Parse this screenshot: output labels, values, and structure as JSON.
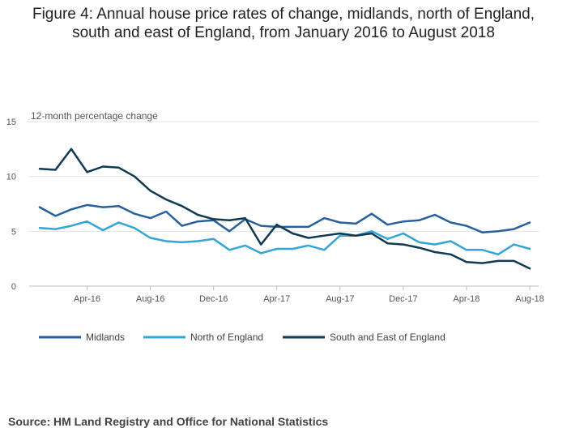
{
  "figure": {
    "title_line1": "Figure 4: Annual house price rates of change, midlands, north of England,",
    "title_line2": "south and east of England, from January 2016 to August 2018",
    "source": "Source: HM Land Registry and Office for National Statistics"
  },
  "chart_data": {
    "type": "line",
    "ylabel": "12-month percentage change",
    "xlabel": "",
    "ylim": [
      0,
      15
    ],
    "yticks": [
      0,
      5,
      10,
      15
    ],
    "grid": true,
    "legend_position": "bottom-left",
    "x": [
      "Jan-16",
      "Feb-16",
      "Mar-16",
      "Apr-16",
      "May-16",
      "Jun-16",
      "Jul-16",
      "Aug-16",
      "Sep-16",
      "Oct-16",
      "Nov-16",
      "Dec-16",
      "Jan-17",
      "Feb-17",
      "Mar-17",
      "Apr-17",
      "May-17",
      "Jun-17",
      "Jul-17",
      "Aug-17",
      "Sep-17",
      "Oct-17",
      "Nov-17",
      "Dec-17",
      "Jan-18",
      "Feb-18",
      "Mar-18",
      "Apr-18",
      "May-18",
      "Jun-18",
      "Jul-18",
      "Aug-18"
    ],
    "xtick_labels": [
      "Apr-16",
      "Aug-16",
      "Dec-16",
      "Apr-17",
      "Aug-17",
      "Dec-17",
      "Apr-18",
      "Aug-18"
    ],
    "series": [
      {
        "name": "Midlands",
        "color": "#27609d",
        "values": [
          7.2,
          6.4,
          7.0,
          7.4,
          7.2,
          7.3,
          6.6,
          6.2,
          6.8,
          5.5,
          5.9,
          6.0,
          5.0,
          6.1,
          5.5,
          5.4,
          5.4,
          5.4,
          6.2,
          5.8,
          5.7,
          6.6,
          5.6,
          5.9,
          6.0,
          6.5,
          5.8,
          5.5,
          4.9,
          5.0,
          5.2,
          5.8
        ]
      },
      {
        "name": "North of England",
        "color": "#35a4d6",
        "values": [
          5.3,
          5.2,
          5.5,
          5.9,
          5.1,
          5.8,
          5.3,
          4.4,
          4.1,
          4.0,
          4.1,
          4.3,
          3.3,
          3.7,
          3.0,
          3.4,
          3.4,
          3.7,
          3.3,
          4.6,
          4.6,
          5.0,
          4.3,
          4.8,
          4.0,
          3.8,
          4.1,
          3.3,
          3.3,
          2.9,
          3.8,
          3.4
        ]
      },
      {
        "name": "South and East of England",
        "color": "#0f3a52",
        "values": [
          10.7,
          10.6,
          12.5,
          10.4,
          10.9,
          10.8,
          10.0,
          8.7,
          7.9,
          7.3,
          6.5,
          6.1,
          6.0,
          6.2,
          3.8,
          5.6,
          4.8,
          4.4,
          4.6,
          4.8,
          4.6,
          4.8,
          3.9,
          3.8,
          3.5,
          3.1,
          2.9,
          2.2,
          2.1,
          2.3,
          2.3,
          1.6
        ]
      }
    ]
  }
}
